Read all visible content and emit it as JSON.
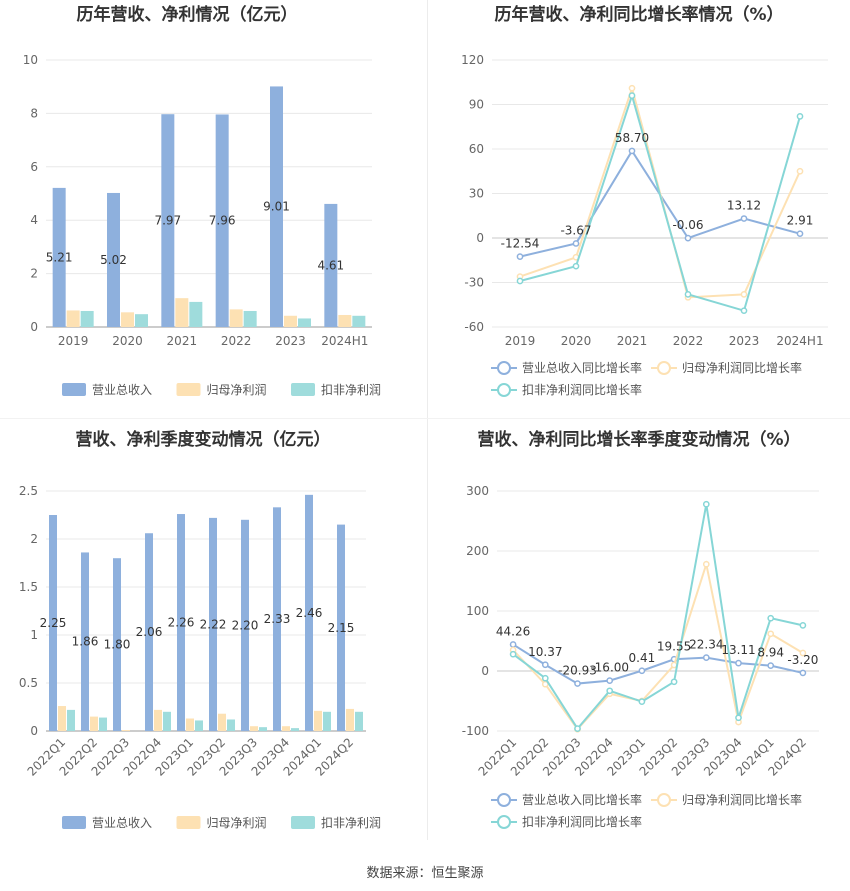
{
  "source_text": "数据来源：恒生聚源",
  "colors": {
    "revenue": "#8eb0dd",
    "net_profit": "#fde1b3",
    "deducted_profit": "#9fdcdc",
    "revenue_line": "#8eb0dd",
    "net_line": "#fde1b3",
    "deducted_line": "#86d6d6"
  },
  "chart_data": [
    {
      "id": "annual-bars",
      "type": "bar",
      "title": "历年营收、净利情况（亿元）",
      "categories": [
        "2019",
        "2020",
        "2021",
        "2022",
        "2023",
        "2024H1"
      ],
      "ylim": [
        0,
        10
      ],
      "yticks": [
        0,
        2,
        4,
        6,
        8,
        10
      ],
      "grid": true,
      "legend_position": "bottom",
      "series": [
        {
          "name": "营业总收入",
          "values": [
            5.21,
            5.02,
            7.97,
            7.96,
            9.01,
            4.61
          ],
          "labels": [
            "5.21",
            "5.02",
            "7.97",
            "7.96",
            "9.01",
            "4.61"
          ]
        },
        {
          "name": "归母净利润",
          "values": [
            0.62,
            0.55,
            1.08,
            0.66,
            0.42,
            0.45
          ]
        },
        {
          "name": "扣非净利润",
          "values": [
            0.6,
            0.48,
            0.94,
            0.6,
            0.32,
            0.42
          ]
        }
      ]
    },
    {
      "id": "annual-lines",
      "type": "line",
      "title": "历年营收、净利同比增长率情况（%）",
      "categories": [
        "2019",
        "2020",
        "2021",
        "2022",
        "2023",
        "2024H1"
      ],
      "ylim": [
        -60,
        120
      ],
      "yticks": [
        -60,
        -30,
        0,
        30,
        60,
        90,
        120
      ],
      "grid": true,
      "legend_position": "bottom",
      "series": [
        {
          "name": "营业总收入同比增长率",
          "values": [
            -12.54,
            -3.67,
            58.7,
            -0.06,
            13.12,
            2.91
          ],
          "labels": [
            "-12.54",
            "-3.67",
            "58.70",
            "-0.06",
            "13.12",
            "2.91"
          ]
        },
        {
          "name": "归母净利润同比增长率",
          "values": [
            -26,
            -13,
            101,
            -40,
            -38,
            45
          ]
        },
        {
          "name": "扣非净利润同比增长率",
          "values": [
            -29,
            -19,
            96,
            -38,
            -49,
            82
          ]
        }
      ]
    },
    {
      "id": "quarterly-bars",
      "type": "bar",
      "title": "营收、净利季度变动情况（亿元）",
      "categories": [
        "2022Q1",
        "2022Q2",
        "2022Q3",
        "2022Q4",
        "2023Q1",
        "2023Q2",
        "2023Q3",
        "2023Q4",
        "2024Q1",
        "2024Q2"
      ],
      "ylim": [
        0,
        2.5
      ],
      "yticks": [
        0,
        0.5,
        1,
        1.5,
        2,
        2.5
      ],
      "grid": true,
      "legend_position": "bottom",
      "series": [
        {
          "name": "营业总收入",
          "values": [
            2.25,
            1.86,
            1.8,
            2.06,
            2.26,
            2.22,
            2.2,
            2.33,
            2.46,
            2.15
          ],
          "labels": [
            "2.25",
            "1.86",
            "1.80",
            "2.06",
            "2.26",
            "2.22",
            "2.20",
            "2.33",
            "2.46",
            "2.15"
          ]
        },
        {
          "name": "归母净利润",
          "values": [
            0.26,
            0.15,
            0.01,
            0.22,
            0.13,
            0.18,
            0.05,
            0.05,
            0.21,
            0.23
          ]
        },
        {
          "name": "扣非净利润",
          "values": [
            0.22,
            0.14,
            0.0,
            0.2,
            0.11,
            0.12,
            0.04,
            0.03,
            0.2,
            0.2
          ]
        }
      ]
    },
    {
      "id": "quarterly-lines",
      "type": "line",
      "title": "营收、净利同比增长率季度变动情况（%）",
      "categories": [
        "2022Q1",
        "2022Q2",
        "2022Q3",
        "2022Q4",
        "2023Q1",
        "2023Q2",
        "2023Q3",
        "2023Q4",
        "2024Q1",
        "2024Q2"
      ],
      "ylim": [
        -100,
        300
      ],
      "yticks": [
        -100,
        0,
        100,
        200,
        300
      ],
      "grid": true,
      "legend_position": "bottom",
      "series": [
        {
          "name": "营业总收入同比增长率",
          "values": [
            44.26,
            10.37,
            -20.93,
            -16.0,
            0.41,
            19.55,
            22.34,
            13.11,
            8.94,
            -3.2
          ],
          "labels": [
            "44.26",
            "10.37",
            "-20.93",
            "-16.00",
            "0.41",
            "19.55",
            "22.34",
            "13.11",
            "8.94",
            "-3.20"
          ]
        },
        {
          "name": "归母净利润同比增长率",
          "values": [
            35,
            -22,
            -97,
            -38,
            -50,
            10,
            178,
            -85,
            62,
            30
          ]
        },
        {
          "name": "扣非净利润同比增长率",
          "values": [
            28,
            -12,
            -96,
            -33,
            -51,
            -18,
            278,
            -78,
            88,
            76
          ]
        }
      ]
    }
  ]
}
